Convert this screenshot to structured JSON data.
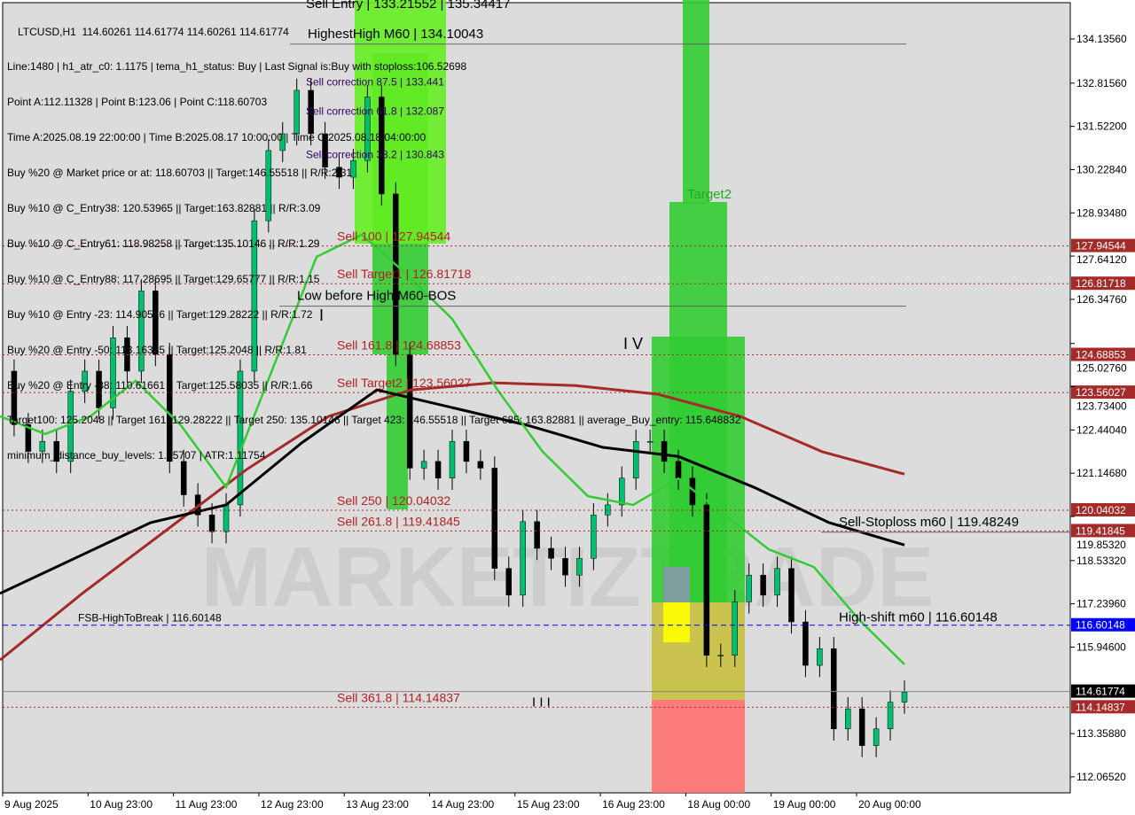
{
  "header": {
    "symbol_line": "LTCUSD,H1  114.60261 114.61774 114.60261 114.61774",
    "info_lines": [
      "Line:1480 | h1_atr_c0: 1.1175 | tema_h1_status: Buy | Last Signal is:Buy with stoploss:106.52698",
      "Point A:112.11328 | Point B:123.06 | Point C:118.60703",
      "Time A:2025.08.19 22:00:00 | Time B:2025.08.17 10:00:00 | Time C:2025.08.18 04:00:00",
      "Buy %20 @ Market price or at: 118.60703 || Target:146.55518 || R/R:2.31",
      "Buy %10 @ C_Entry38: 120.53965 || Target:163.82881 || R/R:3.09",
      "Buy %10 @ C_Entry61: 118.98258 || Target:135.10146 || R/R:1.29",
      "Buy %10 @ C_Entry88: 117.28695 || Target:129.65777 || R/R:1.15",
      "Buy %10 @ Entry -23: 114.90516 || Target:129.28222 || R/R:1.72",
      "Buy %20 @ Entry -50: 113.16335 || Target:125.2048 || R/R:1.81",
      "Buy %20 @ Entry -88: 110.61661 || Target:125.58035 || R/R:1.66",
      "Target100: 125.2048 || Target 161: 129.28222 || Target 250: 135.10146 || Target 423: 146.55518 || Target 685: 163.82881 || average_Buy_entry: 115.648832",
      "minimum_distance_buy_levels: 1.55707 | ATR:1.11754"
    ]
  },
  "chart_data": {
    "type": "candlestick",
    "symbol": "LTCUSD",
    "timeframe": "H1",
    "ylim": [
      111.8,
      135.3
    ],
    "y_ticks": [
      134.1356,
      132.8156,
      131.522,
      130.2284,
      128.9348,
      127.6412,
      126.3476,
      125.0276,
      123.734,
      122.4404,
      121.1468,
      119.8532,
      118.5332,
      117.2396,
      115.946,
      113.3588,
      112.0652
    ],
    "y_tick_labels": [
      "134.13560",
      "132.81560",
      "131.52200",
      "130.22840",
      "128.93480",
      "127.64120",
      "126.34760",
      "125.02760",
      "123.73400",
      "122.44040",
      "121.14680",
      "119.85320",
      "118.53320",
      "117.23960",
      "115.94600",
      "113.35880",
      "112.06520"
    ],
    "x_tick_labels": [
      "9 Aug 2025",
      "10 Aug 23:00",
      "11 Aug 23:00",
      "12 Aug 23:00",
      "13 Aug 23:00",
      "14 Aug 23:00",
      "15 Aug 23:00",
      "16 Aug 23:00",
      "18 Aug 00:00",
      "19 Aug 00:00",
      "20 Aug 00:00"
    ],
    "closes": [
      124.2,
      122.6,
      121.8,
      122.1,
      121.5,
      123.6,
      124.2,
      123.1,
      125.2,
      124.2,
      126.6,
      124.7,
      121.5,
      120.5,
      119.9,
      119.4,
      120.2,
      124.2,
      128.7,
      130.8,
      131.3,
      132.6,
      131.3,
      130.3,
      130.0,
      130.5,
      132.4,
      129.5,
      124.7,
      121.3,
      121.5,
      121.0,
      122.1,
      121.5,
      121.3,
      118.3,
      117.5,
      119.7,
      118.9,
      118.6,
      118.1,
      118.6,
      119.9,
      120.2,
      121.0,
      122.1,
      122.1,
      121.5,
      121.0,
      120.2,
      115.7,
      115.7,
      117.3,
      118.1,
      117.5,
      118.3,
      116.7,
      115.4,
      115.9,
      113.5,
      114.1,
      113.0,
      113.5,
      114.3,
      114.6
    ],
    "ma_green": [
      122.85,
      122.32,
      122.85,
      123.91,
      122.58,
      120.73,
      124.17,
      127.62,
      128.28,
      127.09,
      125.76,
      123.64,
      121.79,
      120.46,
      120.2,
      120.99,
      119.93,
      118.87,
      118.34,
      116.76,
      115.43
    ],
    "ma_black": [
      117.55,
      118.61,
      119.67,
      120.2,
      122.05,
      123.64,
      123.11,
      122.58,
      121.92,
      121.65,
      120.73,
      119.67,
      119.0
    ],
    "ma_darkred": [
      115.56,
      117.55,
      119.4,
      121.26,
      122.85,
      123.64,
      123.85,
      123.77,
      123.51,
      122.85,
      121.79,
      121.12
    ],
    "levels": [
      {
        "price": 127.94544,
        "label": "Sell 100 | 127.94544",
        "tag": "127.94544",
        "color": "#a52a2a"
      },
      {
        "price": 126.81718,
        "label": "Sell Target1 | 126.81718",
        "tag": "126.81718",
        "color": "#a52a2a"
      },
      {
        "price": 124.68853,
        "label": "Sell 161.8 | 124.68853",
        "tag": "124.68853",
        "color": "#a52a2a"
      },
      {
        "price": 123.56027,
        "label": "Sell Target2 | 123.56027",
        "tag": "123.56027",
        "color": "#a52a2a"
      },
      {
        "price": 120.04032,
        "label": "Sell 250 | 120.04032",
        "tag": "120.04032",
        "color": "#a52a2a"
      },
      {
        "price": 119.41845,
        "label": "Sell 261.8 | 119.41845",
        "tag": "119.41845",
        "color": "#a52a2a"
      },
      {
        "price": 114.14837,
        "label": "Sell 361.8 | 114.14837",
        "tag": "114.14837",
        "color": "#a52a2a"
      },
      {
        "price": 116.60148,
        "label": "FSB-HighToBreak | 116.60148",
        "tag": "116.60148",
        "color": "#0000ff"
      }
    ],
    "current_price": {
      "price": 114.61774,
      "tag": "114.61774",
      "color": "#000000"
    },
    "annotations": [
      {
        "text": "HighestHigh  M60 | 134.10043",
        "price": 134.3
      },
      {
        "text": "Sell Entry | 133.21552 | 135.34417",
        "price": 135.2
      },
      {
        "text": "Sell correction 87.5 | 133.441",
        "price": 133.3
      },
      {
        "text": "Sell correction 61.8 | 132.087",
        "price": 132.0
      },
      {
        "text": "Sell correction 38.2 | 130.843",
        "price": 130.7
      },
      {
        "text": "Low before High  M60-BOS",
        "price": 128.9
      },
      {
        "text": "Sell-Stoploss m60 | 119.48249",
        "price": 119.7
      },
      {
        "text": "High-shift m60 | 116.60148",
        "price": 116.85
      },
      {
        "text": "Target2",
        "price": 129.5
      },
      {
        "text": "I",
        "price": 126.9
      },
      {
        "text": "I V",
        "price": 125.0
      },
      {
        "text": "I I I",
        "price": 114.3
      }
    ],
    "watermark": "MARKETIZTRADE",
    "colors": {
      "bull": "#00c070",
      "bear": "#000000",
      "green_zone": "#33cc33",
      "yellow_zone": "#ffff00",
      "red_zone": "#ff6060",
      "axis_bg": "#ffffff",
      "plot_bg": "#dcdcdc"
    }
  }
}
